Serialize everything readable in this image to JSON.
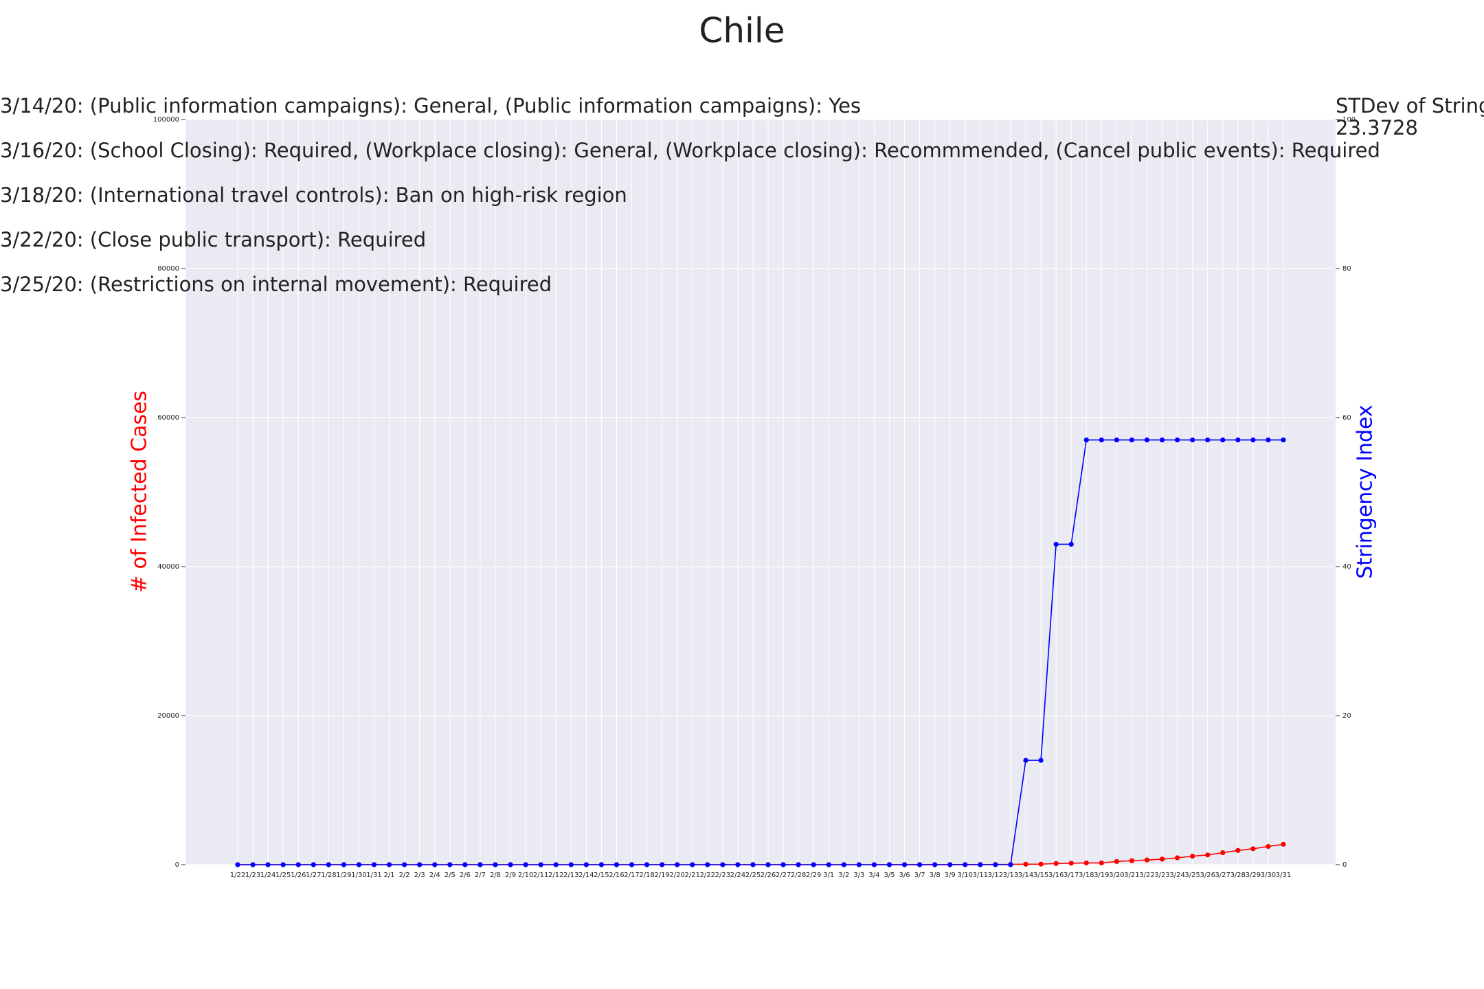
{
  "chart_data": {
    "type": "line",
    "title": "Chile",
    "annotations": [
      "3/14/20: (Public information campaigns): General, (Public information campaigns): Yes",
      "3/16/20: (School Closing): Required, (Workplace closing): General, (Workplace closing): Recommmended, (Cancel public events): Required",
      "3/18/20: (International travel controls): Ban on high-risk region",
      "3/22/20: (Close public transport): Required",
      "3/25/20: (Restrictions on internal movement): Required"
    ],
    "stat_label": "STDev of Stringe",
    "stat_value": 23.3728,
    "ylabel": "# of Infected Cases",
    "y2label": "Stringency Index",
    "categories": [
      "1/22",
      "1/23",
      "1/24",
      "1/25",
      "1/26",
      "1/27",
      "1/28",
      "1/29",
      "1/30",
      "1/31",
      "2/1",
      "2/2",
      "2/3",
      "2/4",
      "2/5",
      "2/6",
      "2/7",
      "2/8",
      "2/9",
      "2/10",
      "2/11",
      "2/12",
      "2/13",
      "2/14",
      "2/15",
      "2/16",
      "2/17",
      "2/18",
      "2/19",
      "2/20",
      "2/21",
      "2/22",
      "2/23",
      "2/24",
      "2/25",
      "2/26",
      "2/27",
      "2/28",
      "2/29",
      "3/1",
      "3/2",
      "3/3",
      "3/4",
      "3/5",
      "3/6",
      "3/7",
      "3/8",
      "3/9",
      "3/10",
      "3/11",
      "3/12",
      "3/13",
      "3/14",
      "3/15",
      "3/16",
      "3/17",
      "3/18",
      "3/19",
      "3/20",
      "3/21",
      "3/22",
      "3/23",
      "3/24",
      "3/25",
      "3/26",
      "3/27",
      "3/28",
      "3/29",
      "3/30",
      "3/31"
    ],
    "series": [
      {
        "name": "# of Infected Cases",
        "color": "#ff0000",
        "axis": "y",
        "values": [
          0,
          0,
          0,
          0,
          0,
          0,
          0,
          0,
          0,
          0,
          0,
          0,
          0,
          0,
          0,
          0,
          0,
          0,
          0,
          0,
          0,
          0,
          0,
          0,
          0,
          0,
          0,
          0,
          0,
          0,
          0,
          0,
          0,
          0,
          0,
          0,
          0,
          0,
          0,
          0,
          0,
          1,
          1,
          4,
          4,
          7,
          7,
          13,
          13,
          23,
          23,
          43,
          61,
          75,
          156,
          201,
          238,
          238,
          434,
          537,
          632,
          746,
          922,
          1142,
          1306,
          1610,
          1909,
          2139,
          2449,
          2738
        ]
      },
      {
        "name": "Stringency Index",
        "color": "#0000ff",
        "axis": "y2",
        "values": [
          0,
          0,
          0,
          0,
          0,
          0,
          0,
          0,
          0,
          0,
          0,
          0,
          0,
          0,
          0,
          0,
          0,
          0,
          0,
          0,
          0,
          0,
          0,
          0,
          0,
          0,
          0,
          0,
          0,
          0,
          0,
          0,
          0,
          0,
          0,
          0,
          0,
          0,
          0,
          0,
          0,
          0,
          0,
          0,
          0,
          0,
          0,
          0,
          0,
          0,
          0,
          0,
          14,
          14,
          43,
          43,
          57,
          57,
          57,
          57,
          57,
          57,
          57,
          57,
          57,
          57,
          57,
          57,
          57,
          57
        ]
      }
    ],
    "ylim": [
      0,
      100000
    ],
    "yticks": [
      0,
      20000,
      40000,
      60000,
      80000,
      100000
    ],
    "y2lim": [
      0,
      100
    ],
    "y2ticks": [
      0,
      20,
      40,
      60,
      80,
      100
    ],
    "grid": true
  }
}
